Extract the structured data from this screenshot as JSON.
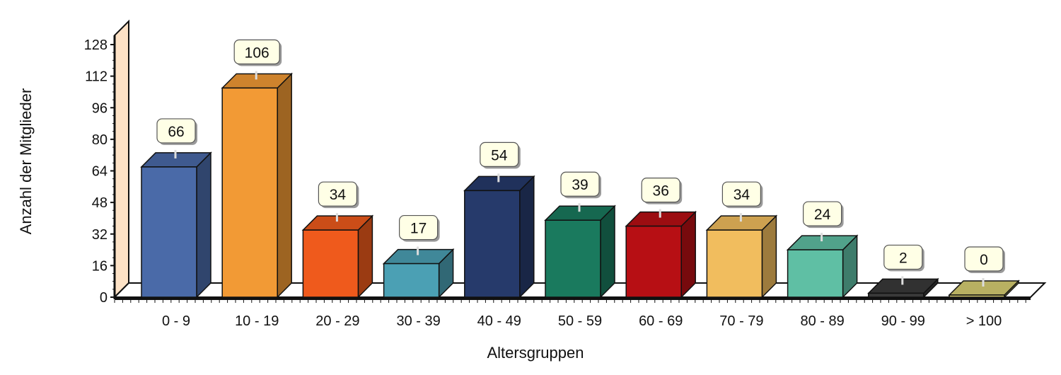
{
  "chart_data": {
    "type": "bar",
    "title": "",
    "xlabel": "Altersgruppen",
    "ylabel": "Anzahl der Mitglieder",
    "ylim": [
      0,
      128
    ],
    "yticks": [
      "0",
      "16",
      "32",
      "48",
      "64",
      "80",
      "96",
      "112",
      "128"
    ],
    "categories": [
      "0 - 9",
      "10 - 19",
      "20 - 29",
      "30 - 39",
      "40 - 49",
      "50 - 59",
      "60 - 69",
      "70 - 79",
      "80 - 89",
      "90 - 99",
      "> 100"
    ],
    "values": [
      66,
      106,
      34,
      17,
      54,
      39,
      36,
      34,
      24,
      2,
      0
    ],
    "data_labels": [
      "66",
      "106",
      "34",
      "17",
      "54",
      "39",
      "36",
      "34",
      "24",
      "2",
      "0"
    ],
    "colors": [
      "#4a6aa8",
      "#f29a35",
      "#ef5a1c",
      "#4ba0b4",
      "#263a6b",
      "#1a7a5e",
      "#b70f14",
      "#f1bd5e",
      "#5fbfa4",
      "#3a3a3a",
      "#d9cf73"
    ],
    "grid": false,
    "legend": "none",
    "style": "3d"
  }
}
